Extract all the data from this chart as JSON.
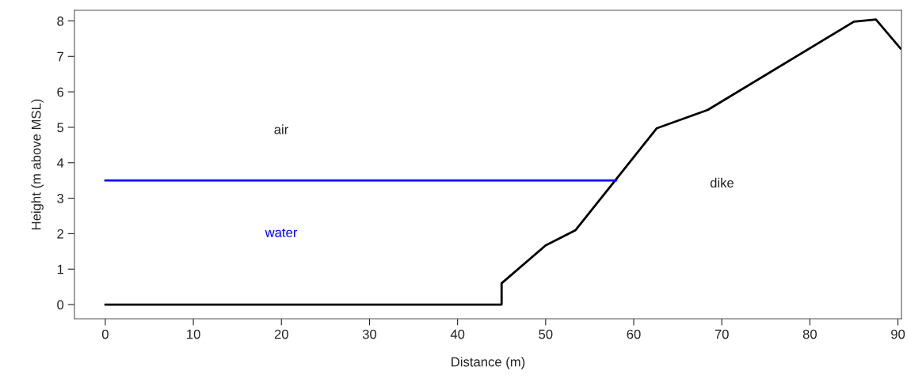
{
  "chart_data": {
    "type": "line",
    "xlabel": "Distance (m)",
    "ylabel": "Height (m above MSL)",
    "series": [
      {
        "name": "dike",
        "color": "#000000",
        "x": [
          0,
          45,
          45,
          50,
          53.4,
          62.6,
          68.4,
          85,
          87.5,
          90.3
        ],
        "values": [
          0,
          0,
          0.6,
          1.67,
          2.1,
          4.97,
          5.49,
          7.98,
          8.04,
          7.22
        ]
      },
      {
        "name": "water",
        "color": "#0000ff",
        "x": [
          0,
          58
        ],
        "values": [
          3.5,
          3.5
        ]
      }
    ],
    "annotations": [
      "air"
    ],
    "xlim": [
      -3.5,
      90.4
    ],
    "ylim": [
      -0.4,
      8.3
    ],
    "xticks": [
      0,
      10,
      20,
      30,
      40,
      50,
      60,
      70,
      80,
      90
    ],
    "yticks": [
      0,
      1,
      2,
      3,
      4,
      5,
      6,
      7,
      8
    ],
    "grid": false,
    "legend": false
  }
}
